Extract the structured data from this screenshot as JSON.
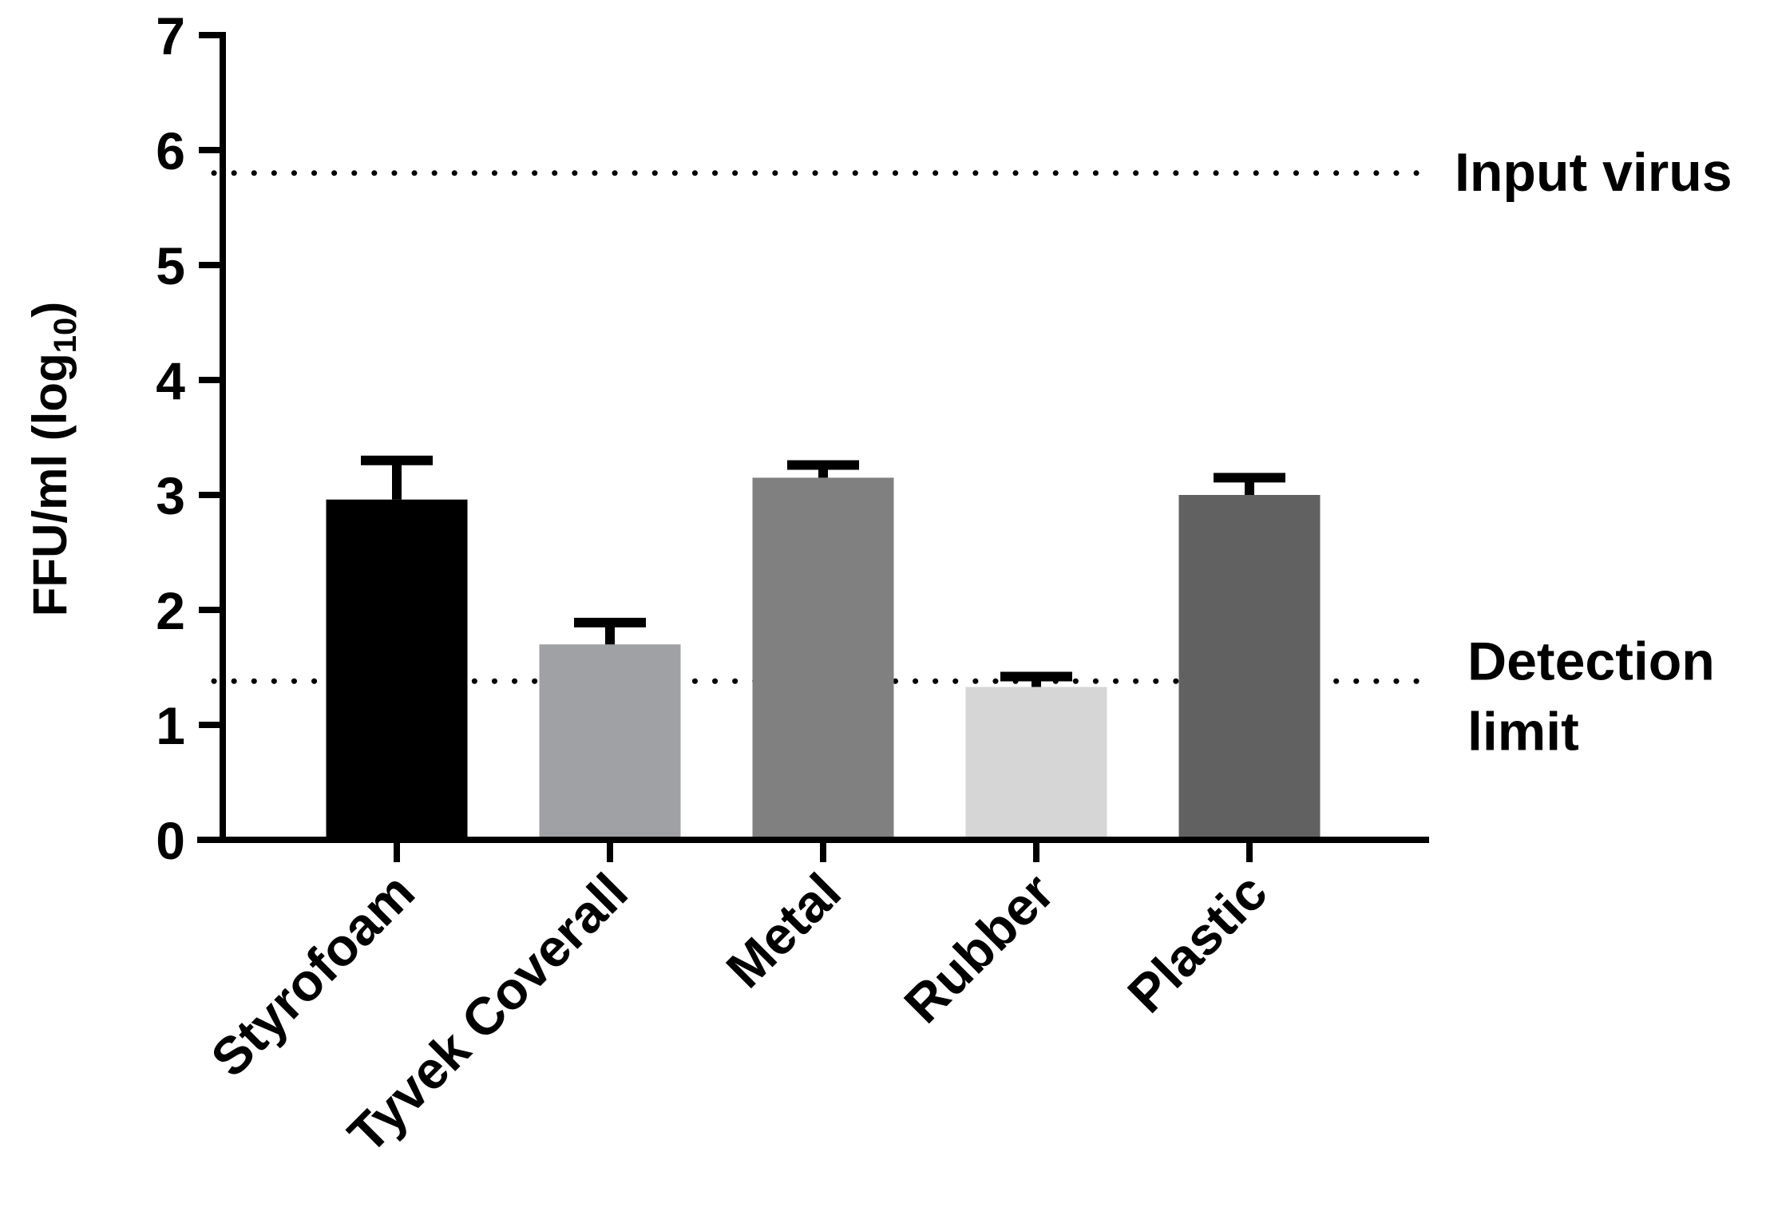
{
  "chart_data": {
    "type": "bar",
    "title": "",
    "xlabel": "",
    "ylabel": {
      "main": "FFU/ml (log",
      "sub": "10",
      "close": ")"
    },
    "ylim": [
      0,
      7
    ],
    "yticks": [
      "0",
      "1",
      "2",
      "3",
      "4",
      "5",
      "6",
      "7"
    ],
    "categories": [
      "Styrofoam",
      "Tyvek Coverall",
      "Metal",
      "Rubber",
      "Plastic"
    ],
    "values": [
      2.96,
      1.7,
      3.15,
      1.33,
      3.0
    ],
    "error_upper": [
      3.3,
      1.89,
      3.26,
      1.42,
      3.15
    ],
    "bar_colors": [
      "#000000",
      "#a0a1a5",
      "#808080",
      "#d6d6d6",
      "#616161"
    ],
    "reference_lines": [
      {
        "y": 5.8,
        "style": "dotted",
        "label": [
          "Input virus"
        ]
      },
      {
        "y": 1.38,
        "style": "dotted",
        "label": [
          "Detection",
          "limit"
        ]
      }
    ],
    "grid": false,
    "legend": "none"
  }
}
